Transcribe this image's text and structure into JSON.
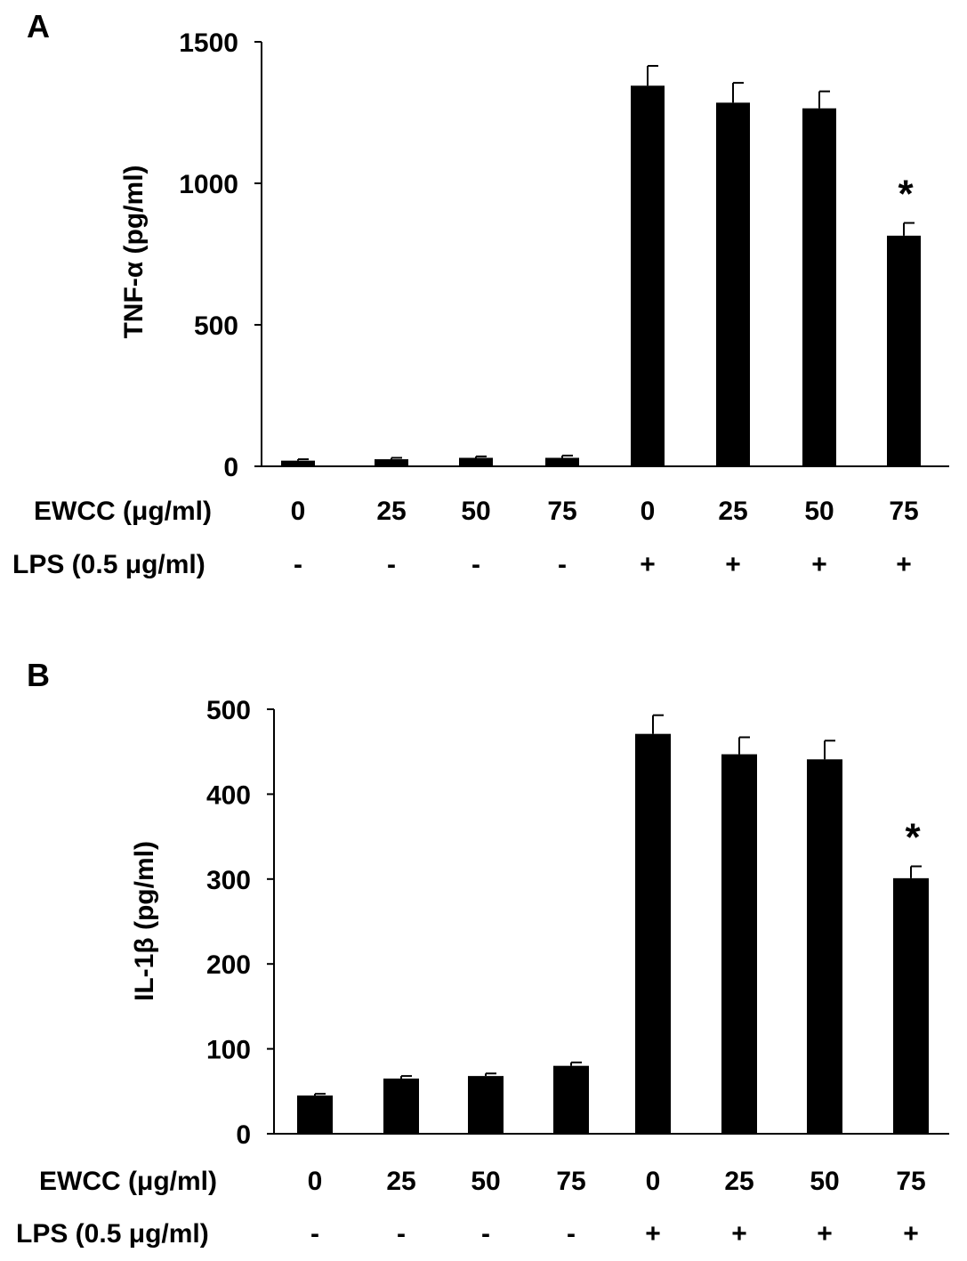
{
  "chart_data": [
    {
      "type": "bar",
      "panel_label": "A",
      "ylabel": "TNF-α (pg/ml)",
      "ylim": [
        0,
        1500
      ],
      "yticks": [
        "0",
        "500",
        "1000",
        "1500"
      ],
      "row_labels": [
        "EWCC (μg/ml)",
        "LPS (0.5 μg/ml)"
      ],
      "categories": [
        "0",
        "25",
        "50",
        "75",
        "0",
        "25",
        "50",
        "75"
      ],
      "lps": [
        "-",
        "-",
        "-",
        "-",
        "+",
        "+",
        "+",
        "+"
      ],
      "values": [
        20,
        25,
        30,
        30,
        1345,
        1285,
        1265,
        815
      ],
      "errors": [
        5,
        5,
        5,
        8,
        70,
        70,
        60,
        45
      ],
      "annotations": [
        "",
        "",
        "",
        "",
        "",
        "",
        "",
        "*"
      ],
      "bar_color": "#000000"
    },
    {
      "type": "bar",
      "panel_label": "B",
      "ylabel": "IL-1β (pg/ml)",
      "ylim": [
        0,
        500
      ],
      "yticks": [
        "0",
        "100",
        "200",
        "300",
        "400",
        "500"
      ],
      "row_labels": [
        "EWCC (μg/ml)",
        "LPS (0.5 μg/ml)"
      ],
      "categories": [
        "0",
        "25",
        "50",
        "75",
        "0",
        "25",
        "50",
        "75"
      ],
      "lps": [
        "-",
        "-",
        "-",
        "-",
        "+",
        "+",
        "+",
        "+"
      ],
      "values": [
        45,
        65,
        68,
        80,
        471,
        447,
        441,
        301
      ],
      "errors": [
        2,
        3,
        3,
        4,
        22,
        20,
        22,
        14
      ],
      "annotations": [
        "",
        "",
        "",
        "",
        "",
        "",
        "",
        "*"
      ],
      "bar_color": "#000000"
    }
  ]
}
